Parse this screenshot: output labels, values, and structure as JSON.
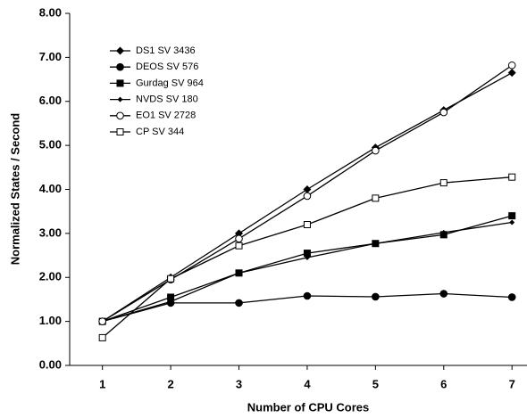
{
  "chart_data": {
    "type": "line",
    "x_label": "Number of CPU Cores",
    "y_label": "Normalized States / Second",
    "x": [
      1,
      2,
      3,
      4,
      5,
      6,
      7
    ],
    "xlim": [
      0.52,
      7.22
    ],
    "xticks": [
      1,
      2,
      3,
      4,
      5,
      6,
      7
    ],
    "ylim": [
      0,
      8
    ],
    "yticks": [
      {
        "value": 0,
        "label": "0.00"
      },
      {
        "value": 1,
        "label": "1.00"
      },
      {
        "value": 2,
        "label": "2.00"
      },
      {
        "value": 3,
        "label": "3.00"
      },
      {
        "value": 4,
        "label": "4.00"
      },
      {
        "value": 5,
        "label": "5.00"
      },
      {
        "value": 6,
        "label": "6.00"
      },
      {
        "value": 7,
        "label": "7.00"
      },
      {
        "value": 8,
        "label": "8.00"
      }
    ],
    "grid": false,
    "legend": "upper left",
    "series": [
      {
        "name": "DS1 SV 3436",
        "color": "#000000",
        "marker": "diamond",
        "values": [
          1.0,
          2.0,
          3.0,
          4.0,
          4.95,
          5.8,
          6.65
        ]
      },
      {
        "name": "DEOS SV 576",
        "color": "#000000",
        "marker": "circle",
        "values": [
          1.0,
          1.42,
          1.42,
          1.58,
          1.56,
          1.63,
          1.55
        ]
      },
      {
        "name": "Gurdag SV 964",
        "color": "#000000",
        "marker": "square",
        "values": [
          1.0,
          1.55,
          2.1,
          2.55,
          2.77,
          2.97,
          3.4
        ]
      },
      {
        "name": "NVDS SV 180",
        "color": "#000000",
        "marker": "small-diamond",
        "values": [
          1.0,
          1.45,
          2.1,
          2.45,
          2.77,
          3.02,
          3.25
        ]
      },
      {
        "name": "EO1 SV 2728",
        "color": "#000000",
        "marker": "open-circle",
        "values": [
          1.0,
          1.95,
          2.88,
          3.85,
          4.88,
          5.75,
          6.82
        ]
      },
      {
        "name": "CP SV 344",
        "color": "#000000",
        "marker": "open-square",
        "values": [
          0.63,
          1.97,
          2.72,
          3.2,
          3.8,
          4.15,
          4.28
        ]
      }
    ]
  }
}
